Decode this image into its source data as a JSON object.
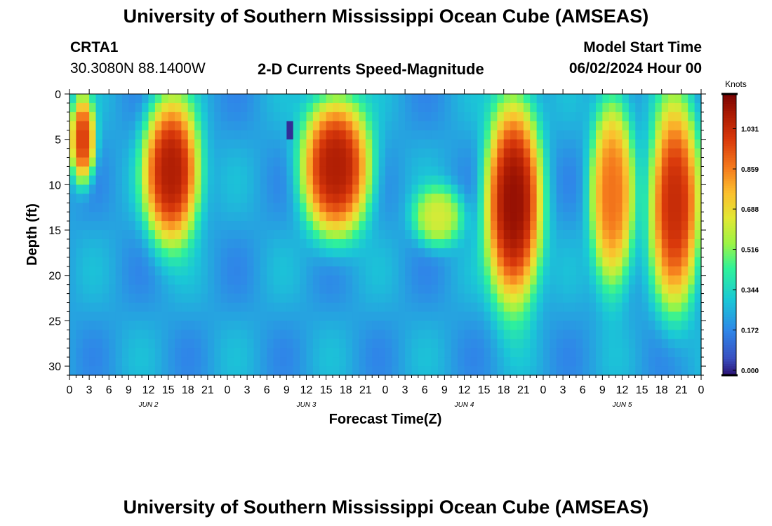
{
  "page": {
    "title_top": "University of Southern Mississippi Ocean Cube (AMSEAS)",
    "title_bottom": "University of Southern Mississippi Ocean Cube (AMSEAS)",
    "station": "CRTA1",
    "coords": "30.3080N  88.1400W",
    "plot_title": "2-D Currents Speed-Magnitude",
    "start_label": "Model Start Time",
    "start_value": "06/02/2024 Hour 00"
  },
  "chart_data": {
    "type": "heatmap",
    "title": "2-D Currents Speed-Magnitude",
    "xlabel": "Forecast Time(Z)",
    "ylabel": "Depth (ft)",
    "x_hours_range": [
      0,
      96
    ],
    "y_depth_range_ft": [
      0,
      31
    ],
    "x_tick_labels": [
      "0",
      "3",
      "6",
      "9",
      "12",
      "15",
      "18",
      "21",
      "0",
      "3",
      "6",
      "9",
      "12",
      "15",
      "18",
      "21",
      "0",
      "3",
      "6",
      "9",
      "12",
      "15",
      "18",
      "21",
      "0",
      "3",
      "6",
      "9",
      "12",
      "15",
      "18",
      "21",
      "0"
    ],
    "date_labels": [
      {
        "label": "JUN 2",
        "hour": 12
      },
      {
        "label": "JUN 3",
        "hour": 36
      },
      {
        "label": "JUN 4",
        "hour": 60
      },
      {
        "label": "JUN 5",
        "hour": 84
      }
    ],
    "y_ticks": [
      0,
      5,
      10,
      15,
      20,
      25,
      30
    ],
    "colorbar": {
      "unit": "Knots",
      "min": 0.0,
      "max": 1.2,
      "ticks": [
        "0.000",
        "0.172",
        "0.344",
        "0.516",
        "0.688",
        "0.859",
        "1.031"
      ]
    },
    "speed_features_knots": [
      {
        "hours": [
          0,
          4
        ],
        "depth_ft": [
          0,
          10
        ],
        "speed": 1.0
      },
      {
        "hours": [
          11,
          20
        ],
        "depth_ft": [
          0,
          17
        ],
        "speed": 1.1
      },
      {
        "hours": [
          35,
          46
        ],
        "depth_ft": [
          0,
          16
        ],
        "speed": 1.1
      },
      {
        "hours": [
          52,
          60
        ],
        "depth_ft": [
          10,
          17
        ],
        "speed": 0.65
      },
      {
        "hours": [
          63,
          72
        ],
        "depth_ft": [
          0,
          24
        ],
        "speed": 1.15
      },
      {
        "hours": [
          79,
          86
        ],
        "depth_ft": [
          0,
          22
        ],
        "speed": 0.9
      },
      {
        "hours": [
          88,
          96
        ],
        "depth_ft": [
          0,
          24
        ],
        "speed": 1.05
      },
      {
        "hours": [
          33,
          34
        ],
        "depth_ft": [
          3,
          5
        ],
        "speed": 0.0
      }
    ]
  }
}
